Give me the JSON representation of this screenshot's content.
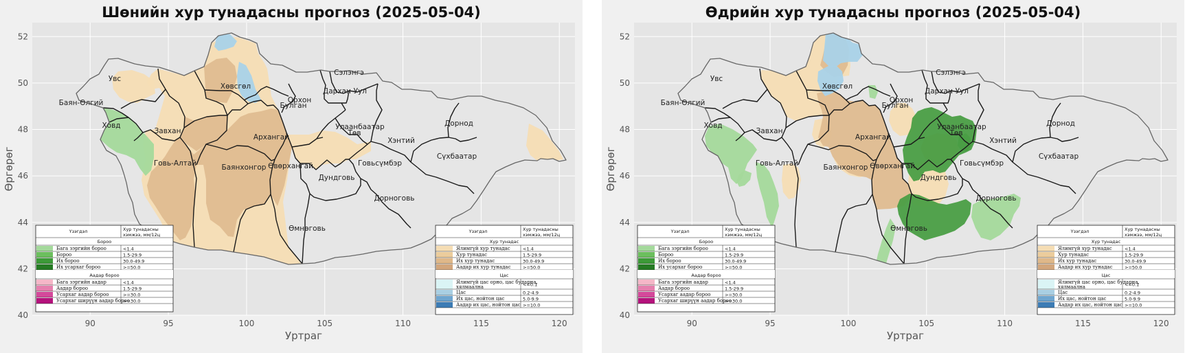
{
  "panels": [
    {
      "id": "night",
      "title": "Шөнийн хур тунадасны прогноз (2025-05-04)",
      "xlabel": "Уртраг",
      "ylabel": "Өргөрөг",
      "xticks": [
        "90",
        "95",
        "100",
        "105",
        "110",
        "115",
        "120"
      ],
      "yticks": [
        "52",
        "50",
        "48",
        "46",
        "44",
        "42",
        "40"
      ],
      "aimags": [
        "Увс",
        "Баян-Өлгий",
        "Ховд",
        "Завхан",
        "Говь-Алтай",
        "Хөвсгөл",
        "Архангай",
        "Баянхонгор",
        "Өвөрхангай",
        "Булган",
        "Орхон",
        "Дархан-Уул",
        "Сэлэнгэ",
        "Улаанбаатар",
        "Төв",
        "Говьсүмбэр",
        "Хэнтий",
        "Дорнод",
        "Сүхбаатар",
        "Дундговь",
        "Дорноговь",
        "Өмнөговь"
      ]
    },
    {
      "id": "day",
      "title": "Өдрийн хур тунадасны прогноз (2025-05-04)",
      "xlabel": "Уртраг",
      "ylabel": "Өргөрөг",
      "xticks": [
        "90",
        "95",
        "100",
        "105",
        "110",
        "115",
        "120"
      ],
      "yticks": [
        "52",
        "50",
        "48",
        "46",
        "44",
        "42",
        "40"
      ],
      "aimags": [
        "Увс",
        "Баян-Өлгий",
        "Ховд",
        "Завхан",
        "Говь-Алтай",
        "Хөвсгөл",
        "Архангай",
        "Баянхонгор",
        "Өвөрхангай",
        "Булган",
        "Орхон",
        "Дархан-Уул",
        "Сэлэнгэ",
        "Улаанбаатар",
        "Төв",
        "Говьсүмбэр",
        "Хэнтий",
        "Дорнод",
        "Сүхбаатар",
        "Дундговь",
        "Дорноговь",
        "Өмнөговь"
      ]
    }
  ],
  "legend_rain": {
    "col1": "Үзэгдэл",
    "col2": "Хур тунадасны хэмжээ, мм/12ц",
    "section1": "Бороо",
    "rows1": [
      {
        "label": "Бага зэргийн бороо",
        "value": "<1.4",
        "color": "#a4d99b"
      },
      {
        "label": "Бороо",
        "value": "1.5-29.9",
        "color": "#6cbf5e"
      },
      {
        "label": "Их бороо",
        "value": "30.0-49.9",
        "color": "#3c9a37"
      },
      {
        "label": "Их усархаг бороо",
        "value": ">=50.0",
        "color": "#257a23"
      }
    ],
    "section2": "Аадар бороо",
    "rows2": [
      {
        "label": "Бага зэргийн аадар",
        "value": "<1.4",
        "color": "#f5b7c8"
      },
      {
        "label": "Аадар бороо",
        "value": "1.5-29.9",
        "color": "#e67fae"
      },
      {
        "label": "Усархаг аадар бороо",
        "value": ">=30.0",
        "color": "#d4489a"
      },
      {
        "label": "Усархаг ширүүн аадар бороо",
        "value": ">=30.0",
        "color": "#b5127c"
      }
    ]
  },
  "legend_snow": {
    "col1": "Үзэгдэл",
    "col2": "Хур тунадасны хэмжээ, мм/12ц",
    "section1": "Хур тунадас",
    "rows1": [
      {
        "label": "Ялимгүй хур тунадас",
        "value": "<1.4",
        "color": "#f5ddb4"
      },
      {
        "label": "Хур тунадас",
        "value": "1.5-29.9",
        "color": "#ebcc9c"
      },
      {
        "label": "Их хур тунадас",
        "value": "30.0-49.9",
        "color": "#dfb889"
      },
      {
        "label": "Аадар их хур тунадас",
        "value": ">=50.0",
        "color": "#d2a67c"
      }
    ],
    "section2": "Цас",
    "rows2": [
      {
        "label": "Ялимгүй цас орно, цас бударна, хялмаална",
        "value": "<=0.1",
        "color": "#daf4f5"
      },
      {
        "label": "Цас",
        "value": "0.2-4.9",
        "color": "#a9cfe3"
      },
      {
        "label": "Их цас, нойтон цас",
        "value": "5.0-9.9",
        "color": "#6ea5cf"
      },
      {
        "label": "Аадар их цас, нойтон цас",
        "value": ">=10.0",
        "color": "#3d7cb5"
      }
    ]
  },
  "colors": {
    "panel_bg": "#f0f0f0",
    "plot_bg": "#e5e5e5",
    "grid": "#ffffff",
    "light_precip": "#f5ddb4",
    "precip": "#dfbc90",
    "snow": "#a9d2e8",
    "light_rain": "#a4d99b",
    "rain": "#6cbf5e",
    "heavy_rain": "#4a9e44"
  }
}
